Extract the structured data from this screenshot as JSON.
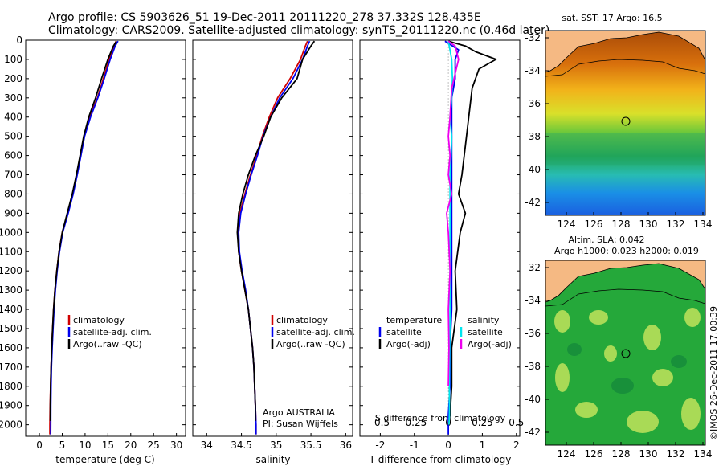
{
  "header": {
    "line1": "Argo profile: CS 5903626_51 19-Dec-2011 20111220_278 37.332S 128.435E",
    "line2": "Climatology: CARS2009. Satellite-adjusted climatology: synTS_20111220.nc (0.46d later)"
  },
  "colors": {
    "clim": "#d00000",
    "sat": "#0000ee",
    "argo": "#000000",
    "sat_s": "#00e5ee",
    "argo_s": "#ee00ee",
    "land": "#f5b983"
  },
  "legend": {
    "climatology": "climatology",
    "satellite": "satellite-adj. clim.",
    "argo": "Argo(..raw -QC)"
  },
  "diff_legend": {
    "temperature": "temperature",
    "salinity": "salinity",
    "satellite": "satellite",
    "argo_adj": "Argo(-adj)"
  },
  "annotations": {
    "argo_country": "Argo AUSTRALIA",
    "pi": "PI: Susan Wijffels",
    "s_diff_label": "S difference from climatology",
    "sst_title": "sat. SST: 17  Argo: 16.5",
    "sla_title1": "Altim. SLA: 0.042",
    "sla_title2": "Argo h1000: 0.023 h2000: 0.019",
    "imos": "©IMOS 26-Dec-2011 17:00:39"
  },
  "chart_data": [
    {
      "type": "line",
      "title": "",
      "xlabel": "temperature (deg C)",
      "ylabel": "",
      "xlim": [
        -3,
        32
      ],
      "ylim": [
        2060,
        0
      ],
      "xticks": [
        0,
        5,
        10,
        15,
        20,
        25,
        30
      ],
      "yticks": [
        0,
        100,
        200,
        300,
        400,
        500,
        600,
        700,
        800,
        900,
        1000,
        1100,
        1200,
        1300,
        1400,
        1500,
        1600,
        1700,
        1800,
        1900,
        2000
      ],
      "series": [
        {
          "name": "climatology",
          "color": "clim",
          "x": [
            16.8,
            16.3,
            15.3,
            14.0,
            12.7,
            11.0,
            9.8,
            9.0,
            8.2,
            7.3,
            6.2,
            5.0,
            4.3,
            3.8,
            3.4,
            3.1,
            2.9,
            2.7,
            2.55,
            2.45,
            2.35,
            2.3,
            2.3
          ],
          "y": [
            5,
            30,
            100,
            200,
            300,
            400,
            500,
            600,
            700,
            800,
            900,
            1000,
            1100,
            1200,
            1300,
            1400,
            1500,
            1600,
            1700,
            1800,
            1900,
            2000,
            2050
          ]
        },
        {
          "name": "satellite-adj. clim.",
          "color": "sat",
          "x": [
            17.2,
            16.6,
            15.5,
            14.2,
            12.8,
            11.2,
            9.9,
            9.1,
            8.3,
            7.4,
            6.3,
            5.1,
            4.4,
            3.9,
            3.5,
            3.2,
            3.0,
            2.8,
            2.65,
            2.55,
            2.5,
            2.48,
            2.47
          ],
          "y": [
            5,
            30,
            100,
            200,
            300,
            400,
            500,
            600,
            700,
            800,
            900,
            1000,
            1100,
            1200,
            1300,
            1400,
            1500,
            1600,
            1700,
            1800,
            1900,
            2000,
            2050
          ]
        },
        {
          "name": "Argo(..raw -QC)",
          "color": "argo",
          "x": [
            16.9,
            16.2,
            15.0,
            13.6,
            12.3,
            10.8,
            9.7,
            8.9,
            8.1,
            7.2,
            6.1,
            5.0,
            4.3,
            3.8,
            3.4,
            3.1,
            2.9,
            2.7,
            2.55,
            2.45,
            2.4,
            2.4
          ],
          "y": [
            5,
            30,
            100,
            200,
            300,
            400,
            500,
            600,
            700,
            800,
            900,
            1000,
            1100,
            1200,
            1300,
            1400,
            1500,
            1600,
            1700,
            1800,
            1900,
            1980
          ]
        }
      ]
    },
    {
      "type": "line",
      "title": "",
      "xlabel": "salinity",
      "ylabel": "",
      "xlim": [
        33.8,
        36.1
      ],
      "ylim": [
        2060,
        0
      ],
      "xticks": [
        34,
        34.5,
        35,
        35.5,
        36
      ],
      "series": [
        {
          "name": "climatology",
          "color": "clim",
          "x": [
            35.45,
            35.42,
            35.35,
            35.2,
            35.02,
            34.9,
            34.8,
            34.72,
            34.63,
            34.55,
            34.48,
            34.45,
            34.46,
            34.5,
            34.55,
            34.6,
            34.63,
            34.66,
            34.68,
            34.69,
            34.7,
            34.71,
            34.71
          ],
          "y": [
            5,
            30,
            100,
            200,
            300,
            400,
            500,
            600,
            700,
            800,
            900,
            1000,
            1100,
            1200,
            1300,
            1400,
            1500,
            1600,
            1700,
            1800,
            1900,
            2000,
            2050
          ]
        },
        {
          "name": "satellite-adj. clim.",
          "color": "sat",
          "x": [
            35.48,
            35.45,
            35.38,
            35.24,
            35.05,
            34.92,
            34.81,
            34.73,
            34.64,
            34.56,
            34.49,
            34.46,
            34.47,
            34.51,
            34.56,
            34.6,
            34.63,
            34.66,
            34.68,
            34.69,
            34.7,
            34.71,
            34.71
          ],
          "y": [
            5,
            30,
            100,
            200,
            300,
            400,
            500,
            600,
            700,
            800,
            900,
            1000,
            1100,
            1200,
            1300,
            1400,
            1500,
            1600,
            1700,
            1800,
            1900,
            2000,
            2050
          ]
        },
        {
          "name": "Argo(..raw -QC)",
          "color": "argo",
          "x": [
            35.55,
            35.5,
            35.38,
            35.3,
            35.08,
            34.92,
            34.82,
            34.7,
            34.6,
            34.52,
            34.46,
            34.44,
            34.46,
            34.5,
            34.55,
            34.6,
            34.63,
            34.66,
            34.68,
            34.69,
            34.7,
            34.7
          ],
          "y": [
            5,
            30,
            100,
            200,
            300,
            400,
            500,
            600,
            700,
            800,
            900,
            1000,
            1100,
            1200,
            1300,
            1400,
            1500,
            1600,
            1700,
            1800,
            1900,
            1980
          ]
        }
      ]
    },
    {
      "type": "line",
      "title": "",
      "xlabel": "T difference from climatology",
      "ylabel": "",
      "xlim": [
        -2.6,
        2.1
      ],
      "ylim": [
        2060,
        0
      ],
      "xticks": [
        -2,
        -1,
        0,
        1,
        2
      ],
      "xticks_top": [
        -0.5,
        -0.25,
        0,
        0.25,
        0.5
      ],
      "xticks_top_scale": 4,
      "series": [
        {
          "name": "T satellite",
          "color": "sat",
          "x": [
            -0.1,
            0.3,
            0.2,
            0.2,
            0.1,
            0.1,
            0.1,
            0.1,
            0.1,
            0.1,
            0.1,
            0.1,
            0.1,
            0.1,
            0.1,
            0.05,
            0.05,
            0.0,
            0.0
          ],
          "y": [
            5,
            50,
            100,
            200,
            300,
            400,
            500,
            600,
            700,
            800,
            900,
            1000,
            1100,
            1200,
            1400,
            1600,
            1800,
            1950,
            2050
          ]
        },
        {
          "name": "T Argo(-adj)",
          "color": "argo",
          "x": [
            0.0,
            0.5,
            0.8,
            1.4,
            0.9,
            0.7,
            0.6,
            0.5,
            0.4,
            0.3,
            0.5,
            0.35,
            0.2,
            0.25,
            0.1,
            0.1,
            0.05,
            0.0
          ],
          "y": [
            5,
            30,
            60,
            100,
            150,
            250,
            400,
            550,
            700,
            800,
            900,
            1000,
            1200,
            1400,
            1600,
            1800,
            1950,
            2000
          ]
        },
        {
          "name": "S satellite",
          "color": "sat_s",
          "x": [
            0.0,
            0.1,
            0.12,
            0.1,
            0.05,
            0.1,
            0.08,
            0.05,
            0.05,
            0.05,
            0.05,
            0.05,
            0.04,
            0.03,
            0.03,
            0.02
          ],
          "y": [
            5,
            100,
            200,
            300,
            400,
            500,
            600,
            700,
            800,
            1000,
            1200,
            1400,
            1600,
            1800,
            1950,
            2000
          ]
        },
        {
          "name": "S Argo(-adj)",
          "color": "argo_s",
          "x": [
            0.0,
            0.2,
            0.3,
            0.1,
            0.05,
            0.0,
            0.05,
            0.0,
            0.1,
            -0.05,
            0.0,
            0.05,
            0.0,
            0.02,
            0.0
          ],
          "y": [
            5,
            30,
            100,
            250,
            400,
            500,
            600,
            700,
            800,
            900,
            1000,
            1200,
            1400,
            1600,
            1800
          ]
        }
      ]
    }
  ],
  "map_axes": {
    "lon_ticks": [
      "124",
      "126",
      "128",
      "130",
      "132",
      "134"
    ],
    "lat_ticks": [
      "-32",
      "-34",
      "-36",
      "-38",
      "-40",
      "-42"
    ]
  }
}
